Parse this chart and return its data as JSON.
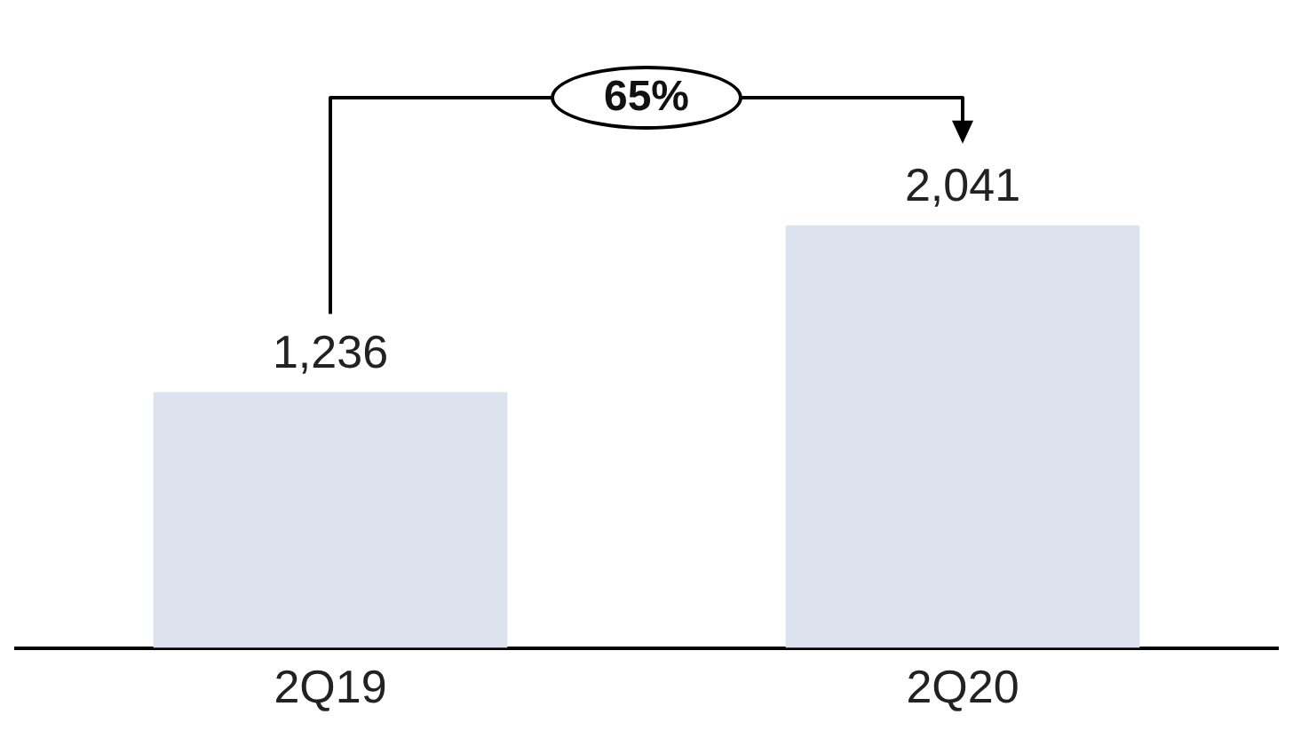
{
  "chart_data": {
    "type": "bar",
    "categories": [
      "2Q19",
      "2Q20"
    ],
    "values": [
      1236,
      2041
    ],
    "color": "#dde3ee",
    "value_labels": [
      "1,236",
      "2,041"
    ],
    "annotations": [
      "65%"
    ]
  }
}
